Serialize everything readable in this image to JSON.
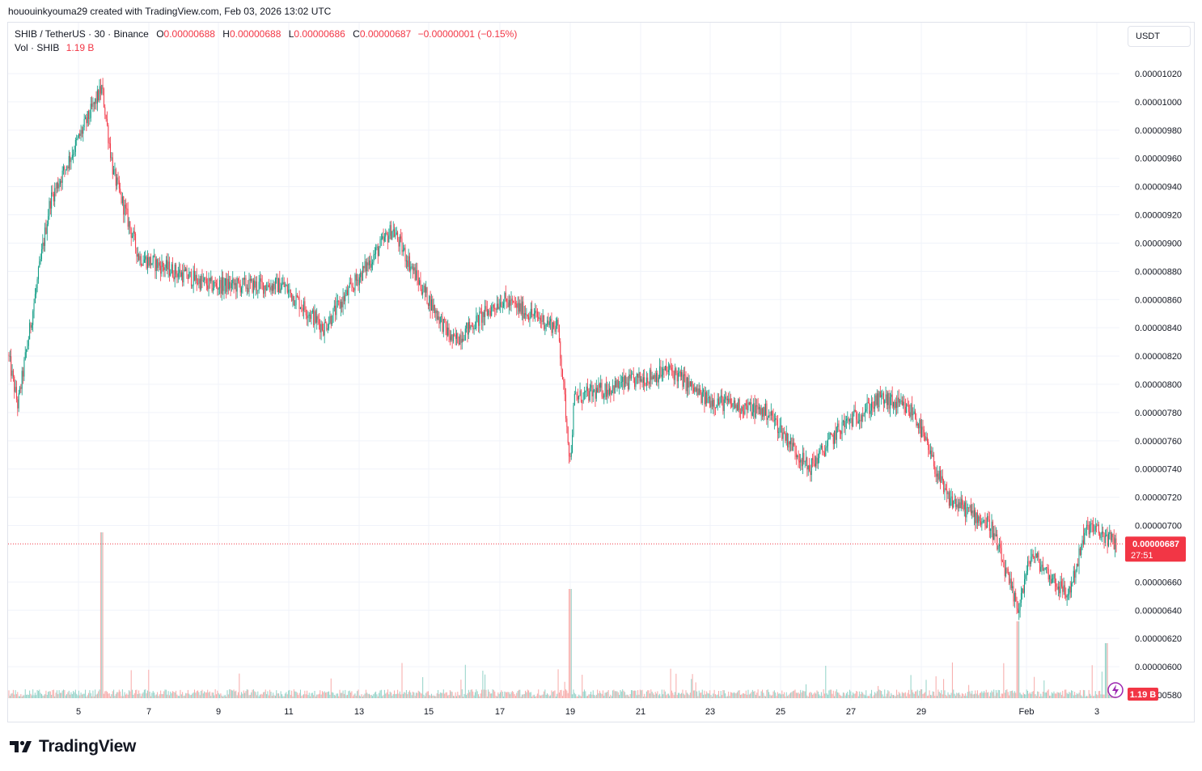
{
  "header": {
    "attribution": "hououinkyouma29 created with TradingView.com, Feb 03, 2026 13:02 UTC"
  },
  "legend": {
    "symbol": "SHIB / TetherUS · 30 · Binance",
    "o_label": "O",
    "o_value": "0.00000688",
    "h_label": "H",
    "h_value": "0.00000688",
    "l_label": "L",
    "l_value": "0.00000686",
    "c_label": "C",
    "c_value": "0.00000687",
    "change": "−0.00000001 (−0.15%)",
    "vol_label": "Vol · SHIB",
    "vol_value": "1.19 B"
  },
  "currency_button": "USDT",
  "price_axis": {
    "ticks": [
      "0.00001020",
      "0.00001000",
      "0.00000980",
      "0.00000960",
      "0.00000940",
      "0.00000920",
      "0.00000900",
      "0.00000880",
      "0.00000860",
      "0.00000840",
      "0.00000820",
      "0.00000800",
      "0.00000780",
      "0.00000760",
      "0.00000740",
      "0.00000720",
      "0.00000700",
      "0.00000660",
      "0.00000640",
      "0.00000620",
      "0.00000600",
      "0.00000580"
    ],
    "current_price_label": "0.00000687",
    "countdown_label": "27:51",
    "volume_label": "1.19 B"
  },
  "time_axis": {
    "ticks": [
      "5",
      "7",
      "9",
      "11",
      "13",
      "15",
      "17",
      "19",
      "21",
      "23",
      "25",
      "27",
      "29",
      "Feb",
      "3"
    ]
  },
  "colors": {
    "up": "#089981",
    "down": "#f23645",
    "up_volume": "#92d2c7",
    "down_volume": "#f7a9a7",
    "grid": "#f0f3fa",
    "text": "#131722"
  },
  "footer": {
    "brand": "TradingView"
  },
  "chart_data": {
    "type": "candlestick",
    "title": "SHIB / TetherUS · 30 · Binance",
    "ylim": [
      5.75e-06,
      1.035e-05
    ],
    "x_ticks": [
      "5",
      "7",
      "9",
      "11",
      "13",
      "15",
      "17",
      "19",
      "21",
      "23",
      "25",
      "27",
      "29",
      "Feb",
      "3"
    ],
    "last_close": 6.87e-06,
    "price_path_anchors": [
      [
        "start",
        8.21e-06
      ],
      [
        "day 4 low",
        7.85e-06
      ],
      [
        "day 5",
        9.3e-06
      ],
      [
        "day 5 spike high",
        1.01e-05
      ],
      [
        "day 6",
        9.5e-06
      ],
      [
        "day 7",
        8.9e-06
      ],
      [
        "day 9",
        8.7e-06
      ],
      [
        "day 11",
        8.7e-06
      ],
      [
        "day 12",
        8.4e-06
      ],
      [
        "day 14 high",
        9.1e-06
      ],
      [
        "day 15",
        8.7e-06
      ],
      [
        "day 16",
        8.3e-06
      ],
      [
        "day 17",
        8.6e-06
      ],
      [
        "day 18",
        8.4e-06
      ],
      [
        "day 19 drop low",
        7.45e-06
      ],
      [
        "day 19",
        7.9e-06
      ],
      [
        "day 21",
        8.1e-06
      ],
      [
        "day 23",
        7.9e-06
      ],
      [
        "day 25",
        7.8e-06
      ],
      [
        "day 26 low",
        7.4e-06
      ],
      [
        "day 27",
        7.7e-06
      ],
      [
        "day 28",
        7.9e-06
      ],
      [
        "day 29",
        7.8e-06
      ],
      [
        "day 30",
        7.2e-06
      ],
      [
        "day 31",
        7e-06
      ],
      [
        "Jan 31 low",
        6.4e-06
      ],
      [
        "Feb 1",
        6.8e-06
      ],
      [
        "Feb 2 low",
        6.5e-06
      ],
      [
        "Feb 2",
        7e-06
      ],
      [
        "Feb 3",
        6.87e-06
      ]
    ],
    "volume_spikes": [
      "day 5 spike",
      "day 19 drop",
      "Jan 31 drop",
      "Feb 3"
    ]
  }
}
